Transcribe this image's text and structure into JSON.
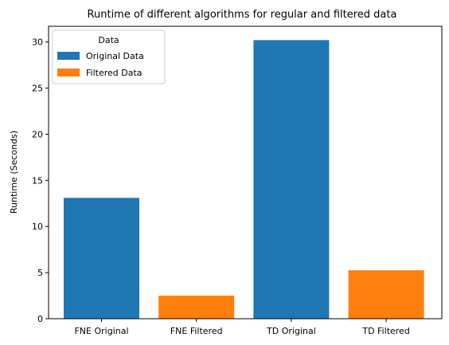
{
  "chart_data": {
    "type": "bar",
    "title": "Runtime of different algorithms for regular and filtered data",
    "xlabel": "",
    "ylabel": "Runtime (Seconds)",
    "categories": [
      "FNE Original",
      "FNE Filtered",
      "TD Original",
      "TD Filtered"
    ],
    "values": [
      13.1,
      2.5,
      30.2,
      5.25
    ],
    "bar_series": [
      "Original Data",
      "Filtered Data",
      "Original Data",
      "Filtered Data"
    ],
    "series": [
      {
        "name": "Original Data",
        "color": "#1f77b4"
      },
      {
        "name": "Filtered Data",
        "color": "#ff7f0e"
      }
    ],
    "ylim": [
      0,
      31.7
    ],
    "yticks": [
      0,
      5,
      10,
      15,
      20,
      25,
      30
    ],
    "legend": {
      "title": "Data",
      "placement": "top-left"
    },
    "grid": false
  }
}
